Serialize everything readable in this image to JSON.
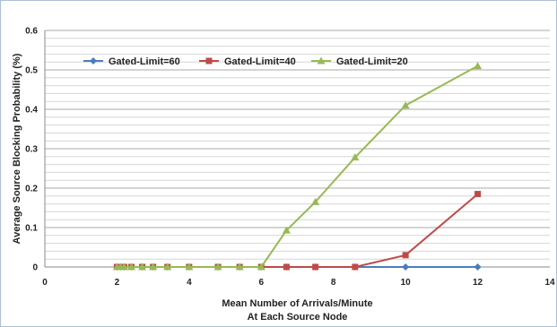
{
  "chart_data": {
    "type": "line",
    "xlabel": [
      "Mean Number of Arrivals/Minute",
      "At Each Source Node"
    ],
    "ylabel": "Average Source Blocking Probability (%)",
    "xlim": [
      0,
      14
    ],
    "ylim": [
      0,
      0.6
    ],
    "x_ticks": [
      0,
      2,
      4,
      6,
      8,
      10,
      12,
      14
    ],
    "y_ticks": [
      0,
      0.1,
      0.2,
      0.3,
      0.4,
      0.5,
      0.6
    ],
    "y_tick_labels": [
      "0",
      "0.1",
      "0.2",
      "0.3",
      "0.4",
      "0.5",
      "0.6"
    ],
    "grid": "horizontal",
    "legend_position": "top-left",
    "series": [
      {
        "name": "Gated-Limit=60",
        "color": "#4a7ebb",
        "marker": "diamond",
        "x": [
          2,
          2.1,
          2.2,
          2.4,
          2.7,
          3,
          3.4,
          4,
          4.8,
          5.4,
          6,
          6.7,
          7.5,
          8.6,
          10,
          12
        ],
        "y": [
          0,
          0,
          0,
          0,
          0,
          0,
          0,
          0,
          0,
          0,
          0,
          0,
          0,
          0,
          0,
          0
        ]
      },
      {
        "name": "Gated-Limit=40",
        "color": "#be4b48",
        "marker": "square",
        "x": [
          2,
          2.1,
          2.2,
          2.4,
          2.7,
          3,
          3.4,
          4,
          4.8,
          5.4,
          6,
          6.7,
          7.5,
          8.6,
          10,
          12
        ],
        "y": [
          0,
          0,
          0,
          0,
          0,
          0,
          0,
          0,
          0,
          0,
          0,
          0,
          0,
          0,
          0.03,
          0.185
        ]
      },
      {
        "name": "Gated-Limit=20",
        "color": "#98b954",
        "marker": "triangle",
        "x": [
          2,
          2.1,
          2.2,
          2.4,
          2.7,
          3,
          3.4,
          4,
          4.8,
          5.4,
          6,
          6.7,
          7.5,
          8.6,
          10,
          12
        ],
        "y": [
          0,
          0,
          0,
          0,
          0,
          0,
          0,
          0,
          0,
          0,
          0,
          0.093,
          0.165,
          0.278,
          0.41,
          0.51
        ]
      }
    ]
  }
}
